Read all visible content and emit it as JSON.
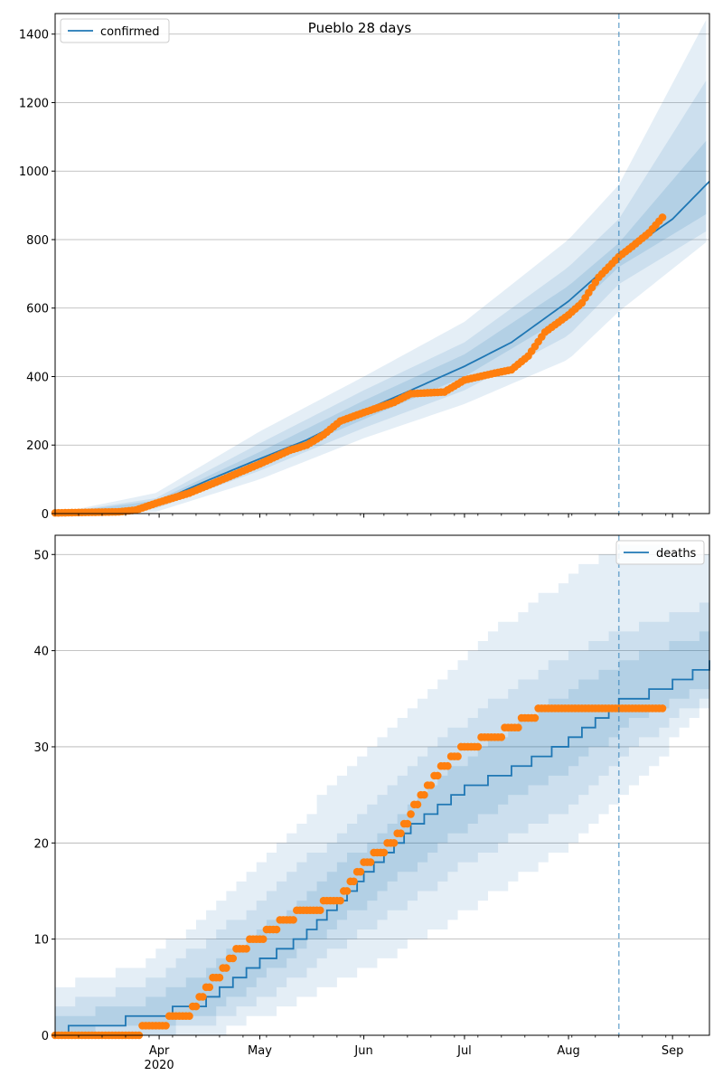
{
  "figure": {
    "title": "Pueblo 28 days",
    "x_ticks": [
      {
        "label": "Apr",
        "day": 31
      },
      {
        "label": "May",
        "day": 61
      },
      {
        "label": "Jun",
        "day": 92
      },
      {
        "label": "Jul",
        "day": 122
      },
      {
        "label": "Aug",
        "day": 153
      },
      {
        "label": "Sep",
        "day": 184
      }
    ],
    "x_year_label": "2020",
    "x_start": "2020-03-01",
    "x_end": "2020-09-12"
  },
  "chart_data": [
    {
      "type": "line",
      "title": "Pueblo 28 days",
      "xlabel": "",
      "ylabel": "",
      "ylim": [
        0,
        1460
      ],
      "yticks": [
        0,
        200,
        400,
        600,
        800,
        1000,
        1200,
        1400
      ],
      "grid": "horizontal",
      "legend": {
        "position": "top-left",
        "entries": [
          "confirmed"
        ]
      },
      "forecast_line_date": "2020-08-16",
      "colors": {
        "line": "#1f77b4",
        "points": "#ff7f0e",
        "band": "#1f77b4"
      },
      "series": [
        {
          "name": "confirmed",
          "kind": "model-median",
          "x": [
            "2020-03-01",
            "2020-03-20",
            "2020-03-31",
            "2020-04-15",
            "2020-05-01",
            "2020-05-15",
            "2020-06-01",
            "2020-06-15",
            "2020-07-01",
            "2020-07-15",
            "2020-08-01",
            "2020-08-16",
            "2020-09-01",
            "2020-09-12"
          ],
          "values": [
            0,
            8,
            30,
            95,
            160,
            215,
            300,
            360,
            430,
            500,
            620,
            750,
            860,
            970
          ]
        },
        {
          "kind": "observed",
          "x": [
            "2020-03-01",
            "2020-03-20",
            "2020-03-25",
            "2020-03-31",
            "2020-04-10",
            "2020-04-20",
            "2020-05-01",
            "2020-05-10",
            "2020-05-15",
            "2020-05-20",
            "2020-05-25",
            "2020-06-01",
            "2020-06-10",
            "2020-06-15",
            "2020-06-25",
            "2020-07-01",
            "2020-07-10",
            "2020-07-15",
            "2020-07-20",
            "2020-07-25",
            "2020-08-01",
            "2020-08-05",
            "2020-08-10",
            "2020-08-16",
            "2020-08-20",
            "2020-08-25",
            "2020-08-29"
          ],
          "values": [
            2,
            5,
            10,
            30,
            60,
            100,
            145,
            185,
            200,
            230,
            270,
            295,
            325,
            350,
            355,
            390,
            410,
            420,
            460,
            530,
            580,
            615,
            690,
            750,
            780,
            820,
            865
          ]
        }
      ],
      "bands": [
        {
          "level": "outer",
          "x": [
            "2020-03-01",
            "2020-03-31",
            "2020-05-01",
            "2020-06-01",
            "2020-07-01",
            "2020-08-01",
            "2020-08-16",
            "2020-09-12"
          ],
          "lower": [
            0,
            5,
            100,
            220,
            320,
            450,
            590,
            800
          ],
          "upper": [
            0,
            60,
            240,
            400,
            560,
            800,
            960,
            1460
          ]
        },
        {
          "level": "middle",
          "x": [
            "2020-03-01",
            "2020-03-31",
            "2020-05-01",
            "2020-06-01",
            "2020-07-01",
            "2020-08-01",
            "2020-08-16",
            "2020-09-12"
          ],
          "lower": [
            0,
            15,
            125,
            250,
            360,
            520,
            670,
            830
          ],
          "upper": [
            0,
            45,
            205,
            360,
            500,
            720,
            860,
            1280
          ]
        },
        {
          "level": "inner",
          "x": [
            "2020-03-01",
            "2020-03-31",
            "2020-05-01",
            "2020-06-01",
            "2020-07-01",
            "2020-08-01",
            "2020-08-16",
            "2020-09-12"
          ],
          "lower": [
            0,
            22,
            145,
            275,
            400,
            580,
            720,
            880
          ],
          "upper": [
            0,
            38,
            180,
            330,
            465,
            665,
            790,
            1100
          ]
        }
      ]
    },
    {
      "type": "line",
      "xlabel": "",
      "ylabel": "",
      "ylim": [
        0,
        52
      ],
      "yticks": [
        0,
        10,
        20,
        30,
        40,
        50
      ],
      "grid": "horizontal",
      "legend": {
        "position": "top-right",
        "entries": [
          "deaths"
        ]
      },
      "forecast_line_date": "2020-08-16",
      "colors": {
        "line": "#1f77b4",
        "points": "#ff7f0e",
        "band": "#1f77b4"
      },
      "series": [
        {
          "name": "deaths",
          "kind": "model-median",
          "x": [
            "2020-03-01",
            "2020-03-05",
            "2020-03-22",
            "2020-04-05",
            "2020-04-15",
            "2020-05-01",
            "2020-05-15",
            "2020-06-01",
            "2020-06-15",
            "2020-07-01",
            "2020-07-15",
            "2020-08-01",
            "2020-08-16",
            "2020-08-25",
            "2020-09-01",
            "2020-09-12"
          ],
          "values": [
            0,
            1,
            2,
            3,
            4,
            8,
            11,
            17,
            22,
            26,
            28,
            31,
            35,
            36,
            37,
            39
          ]
        },
        {
          "kind": "observed",
          "x": [
            "2020-03-01",
            "2020-03-25",
            "2020-03-28",
            "2020-04-10",
            "2020-04-18",
            "2020-04-25",
            "2020-05-01",
            "2020-05-08",
            "2020-05-15",
            "2020-05-25",
            "2020-06-01",
            "2020-06-10",
            "2020-06-15",
            "2020-06-20",
            "2020-06-25",
            "2020-07-01",
            "2020-07-10",
            "2020-07-15",
            "2020-07-20",
            "2020-07-25",
            "2020-08-01",
            "2020-08-29"
          ],
          "values": [
            0,
            0,
            1,
            2,
            6,
            9,
            10,
            12,
            13,
            14,
            18,
            20,
            23,
            26,
            28,
            30,
            31,
            32,
            33,
            34,
            34,
            34
          ]
        }
      ],
      "bands": [
        {
          "level": "outer",
          "x": [
            "2020-03-01",
            "2020-03-25",
            "2020-04-15",
            "2020-05-01",
            "2020-06-01",
            "2020-07-01",
            "2020-08-01",
            "2020-08-16",
            "2020-09-12"
          ],
          "lower": [
            0,
            0,
            0,
            2,
            7,
            13,
            20,
            25,
            35
          ],
          "upper": [
            5,
            7,
            13,
            18,
            30,
            40,
            48,
            51,
            50
          ]
        },
        {
          "level": "middle",
          "x": [
            "2020-03-01",
            "2020-03-25",
            "2020-04-15",
            "2020-05-01",
            "2020-06-01",
            "2020-07-01",
            "2020-08-01",
            "2020-08-16",
            "2020-09-12"
          ],
          "lower": [
            0,
            0,
            1,
            4,
            11,
            18,
            24,
            29,
            36
          ],
          "upper": [
            3,
            5,
            10,
            14,
            24,
            33,
            40,
            42,
            45
          ]
        },
        {
          "level": "inner",
          "x": [
            "2020-03-01",
            "2020-03-25",
            "2020-04-15",
            "2020-05-01",
            "2020-06-01",
            "2020-07-01",
            "2020-08-01",
            "2020-08-16",
            "2020-09-12"
          ],
          "lower": [
            0,
            1,
            2,
            6,
            14,
            22,
            28,
            32,
            37
          ],
          "upper": [
            2,
            3,
            7,
            11,
            20,
            29,
            36,
            39,
            42
          ]
        }
      ]
    }
  ]
}
